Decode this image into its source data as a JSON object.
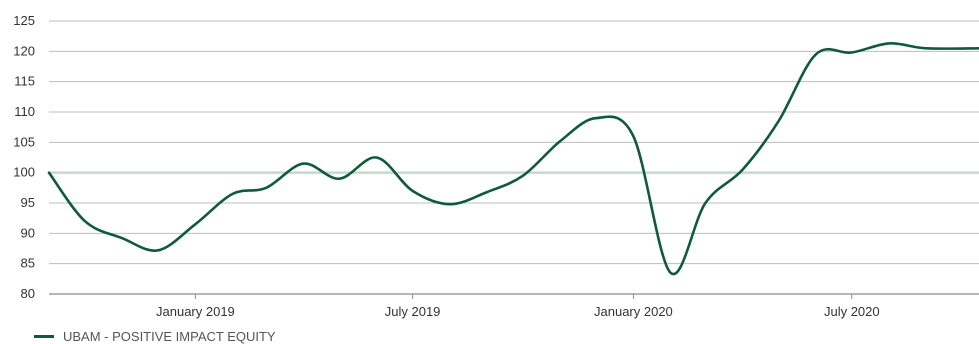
{
  "chart_data": {
    "type": "line",
    "title": "",
    "xlabel": "",
    "ylabel": "",
    "ylim": [
      80,
      125
    ],
    "yticks": [
      80,
      85,
      90,
      95,
      100,
      105,
      110,
      115,
      120,
      125
    ],
    "xlim": [
      "2018-09-01",
      "2020-10-15"
    ],
    "xticks": [
      {
        "date": "2019-01-01",
        "label": "January 2019"
      },
      {
        "date": "2019-07-01",
        "label": "July 2019"
      },
      {
        "date": "2020-01-01",
        "label": "January 2020"
      },
      {
        "date": "2020-07-01",
        "label": "July 2020"
      }
    ],
    "grid": "horizontal",
    "reference_line": 100,
    "legend_position": "bottom-left",
    "colors": {
      "series": "#0f5a3c",
      "reference": "#c2dcc8",
      "grid": "#bdbdbd"
    },
    "series": [
      {
        "name": "UBAM - POSITIVE IMPACT EQUITY",
        "x": [
          "2018-09-01",
          "2018-10-01",
          "2018-11-01",
          "2018-12-01",
          "2019-01-01",
          "2019-02-01",
          "2019-03-01",
          "2019-04-01",
          "2019-05-01",
          "2019-06-01",
          "2019-07-01",
          "2019-08-01",
          "2019-09-01",
          "2019-10-01",
          "2019-11-01",
          "2019-12-01",
          "2020-01-01",
          "2020-02-01",
          "2020-03-01",
          "2020-04-01",
          "2020-05-01",
          "2020-06-01",
          "2020-07-01",
          "2020-08-01",
          "2020-09-01",
          "2020-10-15"
        ],
        "values": [
          100,
          92,
          89.2,
          87.2,
          91.5,
          96.5,
          97.5,
          101.5,
          99,
          102.5,
          97,
          94.8,
          96.8,
          99.5,
          105.2,
          109,
          106,
          83.5,
          95,
          100.5,
          108.5,
          119.5,
          119.8,
          121.3,
          120.5,
          120.5
        ]
      }
    ]
  }
}
